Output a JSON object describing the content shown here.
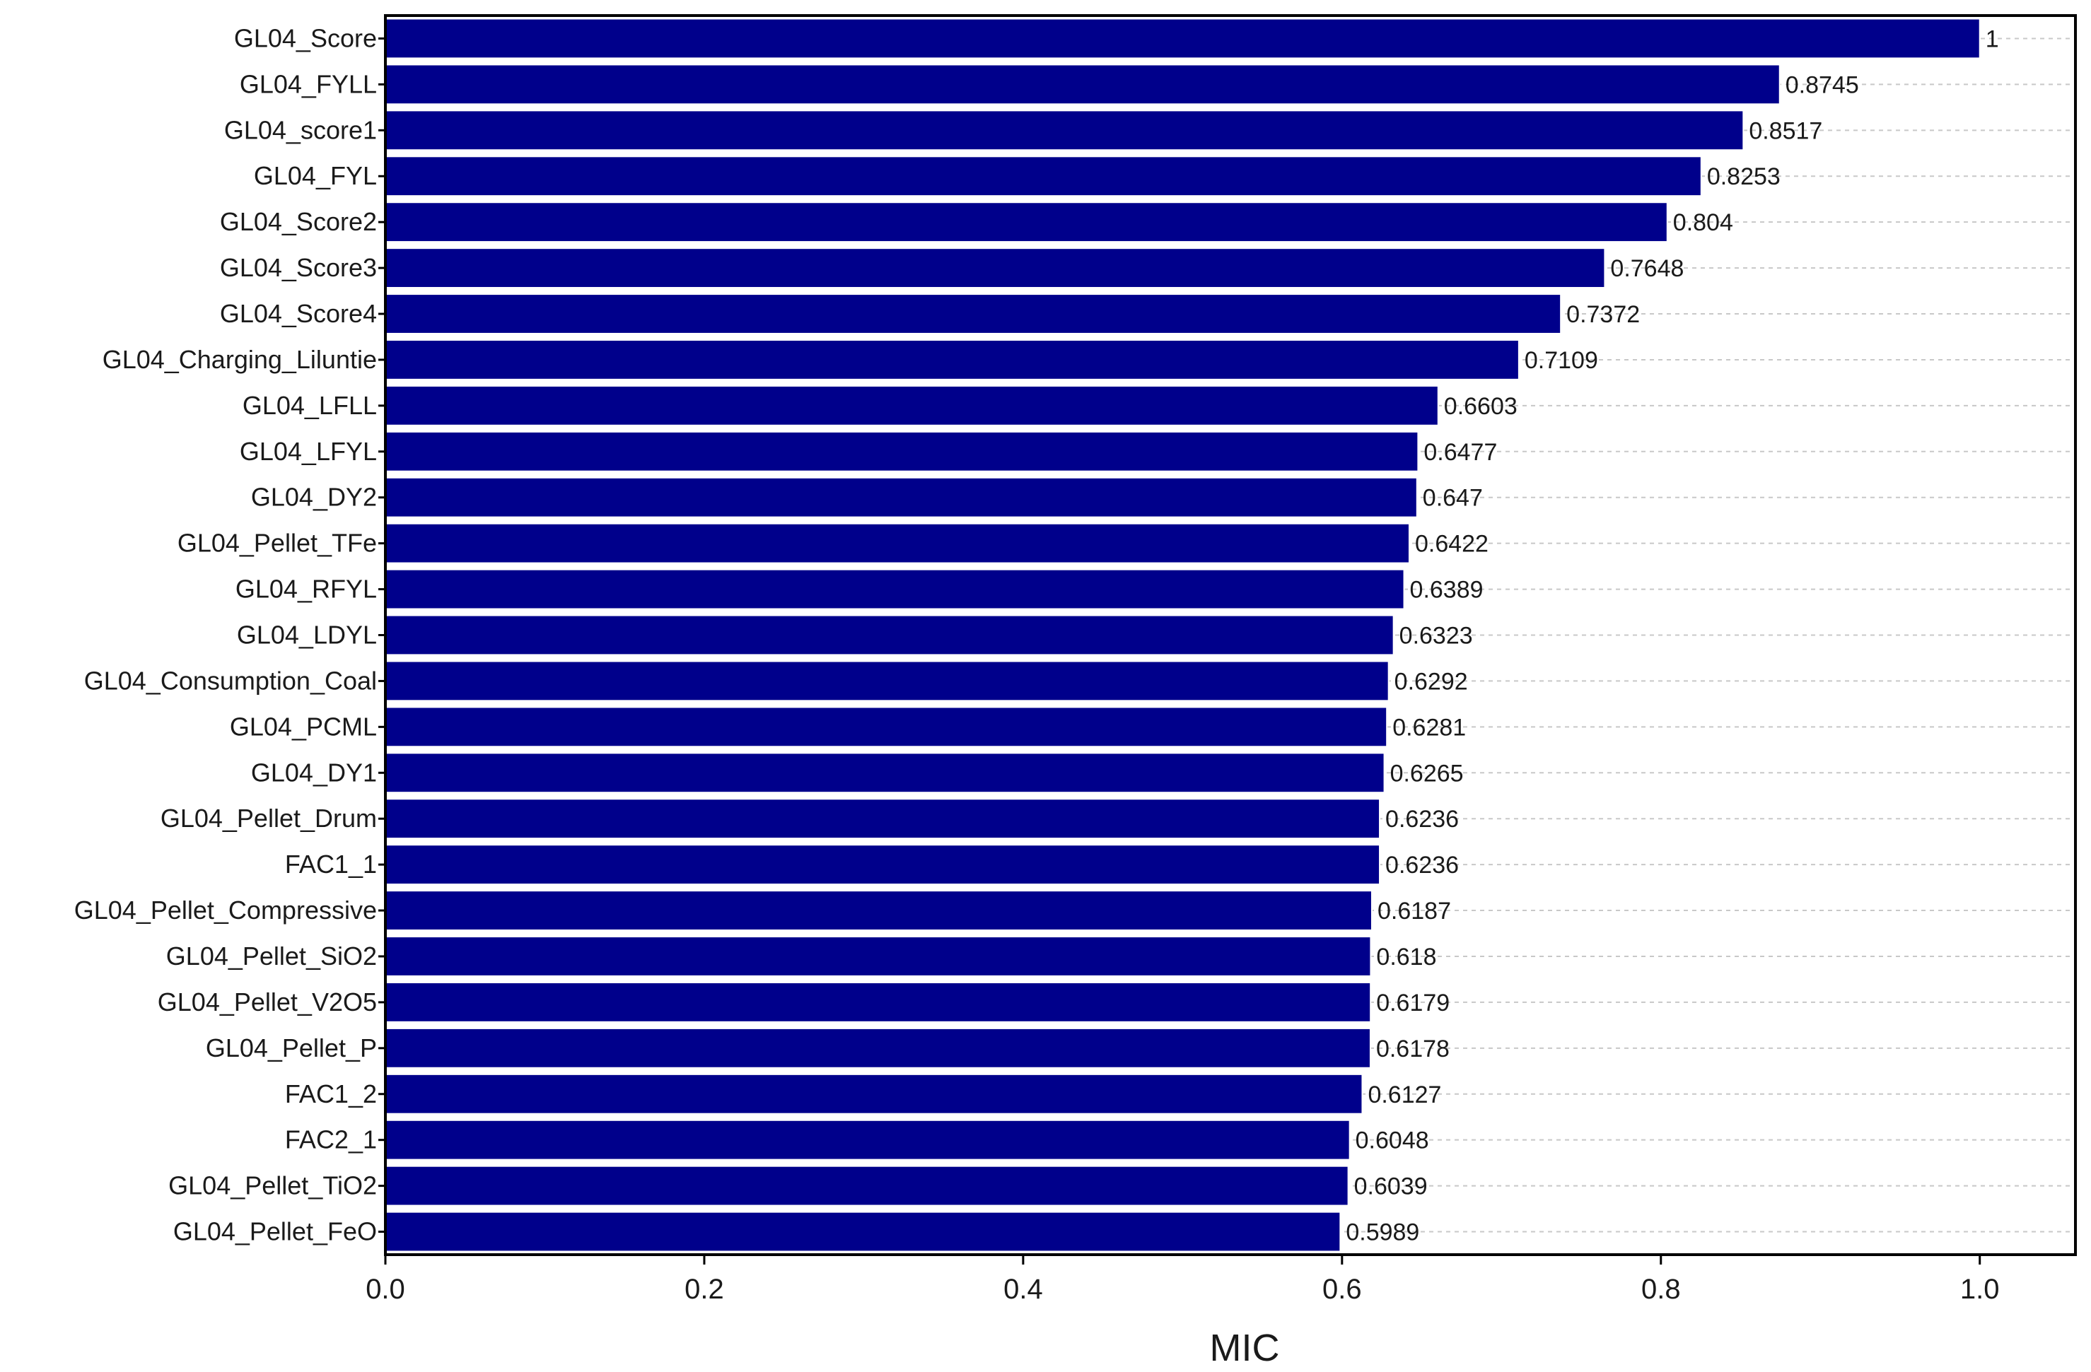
{
  "chart_data": {
    "type": "bar",
    "orientation": "horizontal",
    "categories": [
      "GL04_Score",
      "GL04_FYLL",
      "GL04_score1",
      "GL04_FYL",
      "GL04_Score2",
      "GL04_Score3",
      "GL04_Score4",
      "GL04_Charging_Liluntie",
      "GL04_LFLL",
      "GL04_LFYL",
      "GL04_DY2",
      "GL04_Pellet_TFe",
      "GL04_RFYL",
      "GL04_LDYL",
      "GL04_Consumption_Coal",
      "GL04_PCML",
      "GL04_DY1",
      "GL04_Pellet_Drum",
      "FAC1_1",
      "GL04_Pellet_Compressive",
      "GL04_Pellet_SiO2",
      "GL04_Pellet_V2O5",
      "GL04_Pellet_P",
      "FAC1_2",
      "FAC2_1",
      "GL04_Pellet_TiO2",
      "GL04_Pellet_FeO"
    ],
    "values": [
      1,
      0.8745,
      0.8517,
      0.8253,
      0.804,
      0.7648,
      0.7372,
      0.7109,
      0.6603,
      0.6477,
      0.647,
      0.6422,
      0.6389,
      0.6323,
      0.6292,
      0.6281,
      0.6265,
      0.6236,
      0.6236,
      0.6187,
      0.618,
      0.6179,
      0.6178,
      0.6127,
      0.6048,
      0.6039,
      0.5989
    ],
    "value_labels": [
      "1",
      "0.8745",
      "0.8517",
      "0.8253",
      "0.804",
      "0.7648",
      "0.7372",
      "0.7109",
      "0.6603",
      "0.6477",
      "0.647",
      "0.6422",
      "0.6389",
      "0.6323",
      "0.6292",
      "0.6281",
      "0.6265",
      "0.6236",
      "0.6236",
      "0.6187",
      "0.618",
      "0.6179",
      "0.6178",
      "0.6127",
      "0.6048",
      "0.6039",
      "0.5989"
    ],
    "title": "",
    "xlabel": "MIC",
    "ylabel": "",
    "xlim": [
      0,
      1.06
    ],
    "xticks": [
      0.0,
      0.2,
      0.4,
      0.6,
      0.8,
      1.0
    ],
    "xtick_labels": [
      "0.0",
      "0.2",
      "0.4",
      "0.6",
      "0.8",
      "1.0"
    ],
    "grid": "horizontal dashed",
    "bar_color": "#00008B"
  }
}
